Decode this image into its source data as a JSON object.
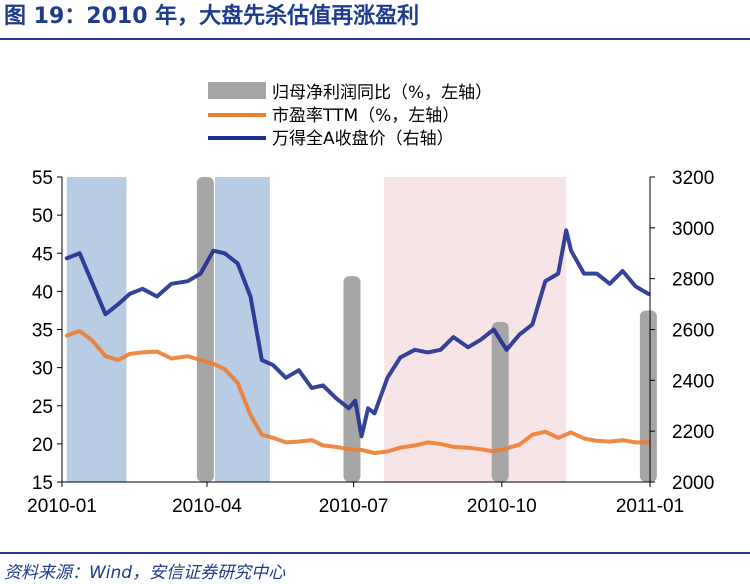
{
  "title": "图 19：2010 年，大盘先杀估值再涨盈利",
  "source": "资料来源：Wind，安信证券研究中心",
  "chart_data": {
    "type": "line",
    "x_ticks": [
      "2010-01",
      "2010-04",
      "2010-07",
      "2010-10",
      "2011-01"
    ],
    "left_axis": {
      "ylim": [
        15,
        55
      ],
      "ticks": [
        55,
        50,
        45,
        40,
        35,
        30,
        25,
        20,
        15
      ]
    },
    "right_axis": {
      "ylim": [
        2000,
        3200
      ],
      "ticks": [
        3200,
        3000,
        2800,
        2600,
        2400,
        2200,
        2000
      ]
    },
    "legend": [
      {
        "label": "归母净利润同比（%，左轴）",
        "color": "#a6a6a6",
        "kind": "bar"
      },
      {
        "label": "市盈率TTM（%，左轴）",
        "color": "#ed7d31",
        "kind": "line"
      },
      {
        "label": "万得全A收盘价（右轴）",
        "color": "#1f2f8f",
        "kind": "line"
      }
    ],
    "shaded_periods": [
      {
        "start": "2010-01-04",
        "end": "2010-02-10",
        "color": "#b8cce4"
      },
      {
        "start": "2010-04-06",
        "end": "2010-05-10",
        "color": "#b8cce4"
      },
      {
        "start": "2010-07-20",
        "end": "2010-11-10",
        "color": "#f7e4e6"
      }
    ],
    "bars": {
      "name": "归母净利润同比（%，左轴）",
      "axis": "left",
      "color": "#a6a6a6",
      "x": [
        "2010-03-31",
        "2010-06-30",
        "2010-09-30",
        "2010-12-31"
      ],
      "values": [
        55,
        42,
        36,
        37.5
      ]
    },
    "series": [
      {
        "name": "市盈率TTM（%，左轴）",
        "axis": "left",
        "color": "#ed7d31",
        "x": [
          "2010-01-04",
          "2010-01-12",
          "2010-01-20",
          "2010-01-28",
          "2010-02-05",
          "2010-02-12",
          "2010-02-20",
          "2010-03-01",
          "2010-03-10",
          "2010-03-20",
          "2010-03-28",
          "2010-04-05",
          "2010-04-12",
          "2010-04-20",
          "2010-04-28",
          "2010-05-05",
          "2010-05-12",
          "2010-05-20",
          "2010-05-28",
          "2010-06-05",
          "2010-06-12",
          "2010-06-20",
          "2010-06-28",
          "2010-07-06",
          "2010-07-14",
          "2010-07-22",
          "2010-07-30",
          "2010-08-08",
          "2010-08-16",
          "2010-08-24",
          "2010-09-01",
          "2010-09-10",
          "2010-09-18",
          "2010-09-26",
          "2010-10-04",
          "2010-10-12",
          "2010-10-20",
          "2010-10-28",
          "2010-11-05",
          "2010-11-13",
          "2010-11-21",
          "2010-11-29",
          "2010-12-07",
          "2010-12-15",
          "2010-12-23",
          "2010-12-31"
        ],
        "values": [
          34.2,
          34.8,
          33.5,
          31.5,
          31.0,
          31.8,
          32.0,
          32.1,
          31.2,
          31.5,
          31.0,
          30.5,
          29.8,
          28.0,
          23.8,
          21.2,
          20.8,
          20.2,
          20.3,
          20.5,
          19.8,
          19.6,
          19.3,
          19.2,
          18.8,
          19.0,
          19.5,
          19.8,
          20.2,
          20.0,
          19.6,
          19.5,
          19.3,
          19.0,
          19.4,
          19.9,
          21.2,
          21.6,
          20.8,
          21.5,
          20.7,
          20.4,
          20.3,
          20.5,
          20.2,
          20.2
        ]
      },
      {
        "name": "万得全A收盘价（右轴）",
        "axis": "right",
        "color": "#1f2f8f",
        "x": [
          "2010-01-04",
          "2010-01-12",
          "2010-01-20",
          "2010-01-28",
          "2010-02-05",
          "2010-02-12",
          "2010-02-20",
          "2010-03-01",
          "2010-03-10",
          "2010-03-20",
          "2010-03-28",
          "2010-04-05",
          "2010-04-12",
          "2010-04-20",
          "2010-04-28",
          "2010-05-05",
          "2010-05-12",
          "2010-05-20",
          "2010-05-28",
          "2010-06-05",
          "2010-06-12",
          "2010-06-20",
          "2010-06-28",
          "2010-07-02",
          "2010-07-06",
          "2010-07-10",
          "2010-07-14",
          "2010-07-22",
          "2010-07-30",
          "2010-08-08",
          "2010-08-16",
          "2010-08-24",
          "2010-09-01",
          "2010-09-10",
          "2010-09-18",
          "2010-09-26",
          "2010-10-04",
          "2010-10-12",
          "2010-10-20",
          "2010-10-28",
          "2010-11-05",
          "2010-11-10",
          "2010-11-13",
          "2010-11-21",
          "2010-11-29",
          "2010-12-07",
          "2010-12-15",
          "2010-12-23",
          "2010-12-31"
        ],
        "values": [
          2880,
          2900,
          2780,
          2660,
          2700,
          2740,
          2760,
          2730,
          2780,
          2790,
          2820,
          2910,
          2900,
          2860,
          2730,
          2480,
          2460,
          2410,
          2440,
          2370,
          2380,
          2330,
          2290,
          2320,
          2180,
          2290,
          2270,
          2410,
          2490,
          2520,
          2510,
          2520,
          2570,
          2530,
          2560,
          2600,
          2520,
          2580,
          2620,
          2790,
          2820,
          2990,
          2910,
          2820,
          2820,
          2780,
          2830,
          2770,
          2740
        ]
      }
    ]
  }
}
